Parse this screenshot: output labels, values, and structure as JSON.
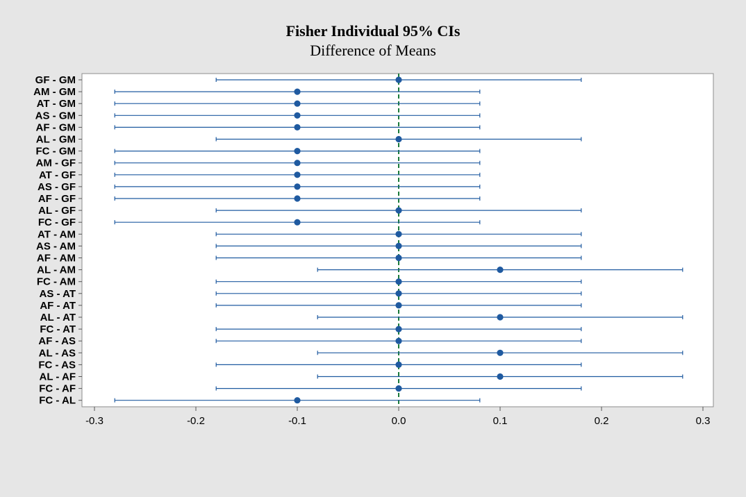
{
  "chart_data": {
    "type": "interval",
    "title": "Fisher Individual 95% CIs",
    "subtitle": "Difference of Means",
    "xlabel": "",
    "ylabel": "",
    "xlim": [
      -0.31,
      0.31
    ],
    "xticks": [
      -0.3,
      -0.2,
      -0.1,
      0.0,
      0.1,
      0.2,
      0.3
    ],
    "xtick_labels": [
      "-0.3",
      "-0.2",
      "-0.1",
      "0.0",
      "0.1",
      "0.2",
      "0.3"
    ],
    "reference_line": 0.0,
    "reference_line_color": "#1a7a3a",
    "series_color": "#1f5aa0",
    "grid": false,
    "rows": [
      {
        "label": "GF - GM",
        "estimate": 0.0,
        "lower": -0.18,
        "upper": 0.18
      },
      {
        "label": "AM - GM",
        "estimate": -0.1,
        "lower": -0.28,
        "upper": 0.08
      },
      {
        "label": "AT - GM",
        "estimate": -0.1,
        "lower": -0.28,
        "upper": 0.08
      },
      {
        "label": "AS - GM",
        "estimate": -0.1,
        "lower": -0.28,
        "upper": 0.08
      },
      {
        "label": "AF - GM",
        "estimate": -0.1,
        "lower": -0.28,
        "upper": 0.08
      },
      {
        "label": "AL - GM",
        "estimate": 0.0,
        "lower": -0.18,
        "upper": 0.18
      },
      {
        "label": "FC - GM",
        "estimate": -0.1,
        "lower": -0.28,
        "upper": 0.08
      },
      {
        "label": "AM - GF",
        "estimate": -0.1,
        "lower": -0.28,
        "upper": 0.08
      },
      {
        "label": "AT - GF",
        "estimate": -0.1,
        "lower": -0.28,
        "upper": 0.08
      },
      {
        "label": "AS - GF",
        "estimate": -0.1,
        "lower": -0.28,
        "upper": 0.08
      },
      {
        "label": "AF - GF",
        "estimate": -0.1,
        "lower": -0.28,
        "upper": 0.08
      },
      {
        "label": "AL - GF",
        "estimate": 0.0,
        "lower": -0.18,
        "upper": 0.18
      },
      {
        "label": "FC - GF",
        "estimate": -0.1,
        "lower": -0.28,
        "upper": 0.08
      },
      {
        "label": "AT - AM",
        "estimate": 0.0,
        "lower": -0.18,
        "upper": 0.18
      },
      {
        "label": "AS - AM",
        "estimate": 0.0,
        "lower": -0.18,
        "upper": 0.18
      },
      {
        "label": "AF - AM",
        "estimate": 0.0,
        "lower": -0.18,
        "upper": 0.18
      },
      {
        "label": "AL - AM",
        "estimate": 0.1,
        "lower": -0.08,
        "upper": 0.28
      },
      {
        "label": "FC - AM",
        "estimate": 0.0,
        "lower": -0.18,
        "upper": 0.18
      },
      {
        "label": "AS - AT",
        "estimate": 0.0,
        "lower": -0.18,
        "upper": 0.18
      },
      {
        "label": "AF - AT",
        "estimate": 0.0,
        "lower": -0.18,
        "upper": 0.18
      },
      {
        "label": "AL - AT",
        "estimate": 0.1,
        "lower": -0.08,
        "upper": 0.28
      },
      {
        "label": "FC - AT",
        "estimate": 0.0,
        "lower": -0.18,
        "upper": 0.18
      },
      {
        "label": "AF - AS",
        "estimate": 0.0,
        "lower": -0.18,
        "upper": 0.18
      },
      {
        "label": "AL - AS",
        "estimate": 0.1,
        "lower": -0.08,
        "upper": 0.28
      },
      {
        "label": "FC - AS",
        "estimate": 0.0,
        "lower": -0.18,
        "upper": 0.18
      },
      {
        "label": "AL - AF",
        "estimate": 0.1,
        "lower": -0.08,
        "upper": 0.28
      },
      {
        "label": "FC - AF",
        "estimate": 0.0,
        "lower": -0.18,
        "upper": 0.18
      },
      {
        "label": "FC - AL",
        "estimate": -0.1,
        "lower": -0.28,
        "upper": 0.08
      }
    ]
  }
}
